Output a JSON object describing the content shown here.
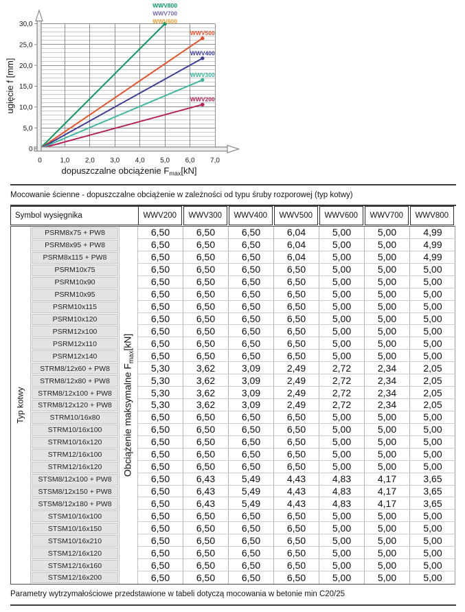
{
  "captions": {
    "table_intro": "Mocowanie ścienne - dopuszczalne obciążenie w zależności od typu śruby rozporowej (typ kotwy)",
    "footer_note": "Parametry wytrzymałościowe przedstawione w tabeli dotyczą mocowania w betonie min C20/25"
  },
  "chart_data": {
    "type": "line",
    "xlabel": {
      "prefix": "dopuszczalne obciążenie F",
      "sub": "max",
      "suffix": "[kN]"
    },
    "ylabel": "ugięcie f [mm]",
    "xlim": [
      0,
      7
    ],
    "ylim": [
      0,
      30
    ],
    "x_tick_step": 1,
    "y_minor_step": 1,
    "y_major_step": 5,
    "x_tick_labels": [
      "0",
      "1,0",
      "2,0",
      "3,0",
      "4,0",
      "5,0",
      "6,0",
      "7,0"
    ],
    "y_tick_labels": [
      "0",
      "5,0",
      "10,0",
      "15,0",
      "20,0",
      "25,0",
      "30,0"
    ],
    "grid": true,
    "legend_position": "stacked labels above line ends",
    "top_labels": [
      {
        "name": "WWV800",
        "color": "#089a60"
      },
      {
        "name": "WWV700",
        "color": "#7668b1"
      },
      {
        "name": "WWV600",
        "color": "#f59b2d"
      }
    ],
    "series": [
      {
        "name": "WWV800",
        "color": "#089a60",
        "points": [
          [
            0,
            0
          ],
          [
            5.0,
            30.0
          ]
        ],
        "end_label": false
      },
      {
        "name": "WWV500",
        "color": "#e8502a",
        "points": [
          [
            0,
            0
          ],
          [
            6.5,
            26.5
          ]
        ],
        "end_label": true
      },
      {
        "name": "WWV400",
        "color": "#3c3c96",
        "points": [
          [
            0,
            0
          ],
          [
            6.5,
            21.7
          ]
        ],
        "end_label": true
      },
      {
        "name": "WWV300",
        "color": "#3cb49e",
        "points": [
          [
            0,
            0
          ],
          [
            6.5,
            16.5
          ]
        ],
        "end_label": true
      },
      {
        "name": "WWV200",
        "color": "#b51f55",
        "points": [
          [
            0,
            0
          ],
          [
            6.5,
            10.6
          ]
        ],
        "end_label": true
      }
    ]
  },
  "table": {
    "header_left": "Symbol wysięgnika",
    "columns": [
      "WWV200",
      "WWV300",
      "WWV400",
      "WWV500",
      "WWV600",
      "WWV700",
      "WWV800"
    ],
    "row_group_label": "Typ kotwy",
    "values_label": {
      "prefix": "Obciążenie maksymalne F",
      "sub": "max",
      "suffix": "[kN]"
    },
    "rows": [
      {
        "name": "PSRM8x75 + PW8",
        "values": [
          "6,50",
          "6,50",
          "6,50",
          "6,04",
          "5,00",
          "5,00",
          "4,99"
        ]
      },
      {
        "name": "PSRM8x95 + PW8",
        "values": [
          "6,50",
          "6,50",
          "6,50",
          "6,04",
          "5,00",
          "5,00",
          "4,99"
        ]
      },
      {
        "name": "PSRM8x115 + PW8",
        "values": [
          "6,50",
          "6,50",
          "6,50",
          "6,04",
          "5,00",
          "5,00",
          "4,99"
        ]
      },
      {
        "name": "PSRM10x75",
        "values": [
          "6,50",
          "6,50",
          "6,50",
          "6,50",
          "5,00",
          "5,00",
          "5,00"
        ]
      },
      {
        "name": "PSRM10x90",
        "values": [
          "6,50",
          "6,50",
          "6,50",
          "6,50",
          "5,00",
          "5,00",
          "5,00"
        ]
      },
      {
        "name": "PSRM10x95",
        "values": [
          "6,50",
          "6,50",
          "6,50",
          "6,50",
          "5,00",
          "5,00",
          "5,00"
        ]
      },
      {
        "name": "PSRM10x115",
        "values": [
          "6,50",
          "6,50",
          "6,50",
          "6,50",
          "5,00",
          "5,00",
          "5,00"
        ]
      },
      {
        "name": "PSRM10x120",
        "values": [
          "6,50",
          "6,50",
          "6,50",
          "6,50",
          "5,00",
          "5,00",
          "5,00"
        ]
      },
      {
        "name": "PSRM12x100",
        "values": [
          "6,50",
          "6,50",
          "6,50",
          "6,50",
          "5,00",
          "5,00",
          "5,00"
        ]
      },
      {
        "name": "PSRM12x110",
        "values": [
          "6,50",
          "6,50",
          "6,50",
          "6,50",
          "5,00",
          "5,00",
          "5,00"
        ]
      },
      {
        "name": "PSRM12x140",
        "values": [
          "6,50",
          "6,50",
          "6,50",
          "6,50",
          "5,00",
          "5,00",
          "5,00"
        ]
      },
      {
        "name": "STRM8/12x60 + PW8",
        "values": [
          "5,30",
          "3,62",
          "3,09",
          "2,49",
          "2,72",
          "2,34",
          "2,05"
        ]
      },
      {
        "name": "STRM8/12x80 + PW8",
        "values": [
          "5,30",
          "3,62",
          "3,09",
          "2,49",
          "2,72",
          "2,34",
          "2,05"
        ]
      },
      {
        "name": "STRM8/12x100 + PW8",
        "values": [
          "5,30",
          "3,62",
          "3,09",
          "2,49",
          "2,72",
          "2,34",
          "2,05"
        ]
      },
      {
        "name": "STRM8/12x120 + PW8",
        "values": [
          "5,30",
          "3,62",
          "3,09",
          "2,49",
          "2,72",
          "2,34",
          "2,05"
        ]
      },
      {
        "name": "STRM10/16x80",
        "values": [
          "6,50",
          "6,50",
          "6,50",
          "6,50",
          "5,00",
          "5,00",
          "5,00"
        ]
      },
      {
        "name": "STRM10/16x100",
        "values": [
          "6,50",
          "6,50",
          "6,50",
          "6,50",
          "5,00",
          "5,00",
          "5,00"
        ]
      },
      {
        "name": "STRM10/16x120",
        "values": [
          "6,50",
          "6,50",
          "6,50",
          "6,50",
          "5,00",
          "5,00",
          "5,00"
        ]
      },
      {
        "name": "STRM12/16x100",
        "values": [
          "6,50",
          "6,50",
          "6,50",
          "6,50",
          "5,00",
          "5,00",
          "5,00"
        ]
      },
      {
        "name": "STRM12/16x120",
        "values": [
          "6,50",
          "6,50",
          "6,50",
          "6,50",
          "5,00",
          "5,00",
          "5,00"
        ]
      },
      {
        "name": "STSM8/12x100 + PW8",
        "values": [
          "6,50",
          "6,43",
          "5,49",
          "4,43",
          "4,83",
          "4,17",
          "3,65"
        ]
      },
      {
        "name": "STSM8/12x150 + PW8",
        "values": [
          "6,50",
          "6,43",
          "5,49",
          "4,43",
          "4,83",
          "4,17",
          "3,65"
        ]
      },
      {
        "name": "STSM8/12x180 + PW8",
        "values": [
          "6,50",
          "6,43",
          "5,49",
          "4,43",
          "4,83",
          "4,17",
          "3,65"
        ]
      },
      {
        "name": "STSM10/16x100",
        "values": [
          "6,50",
          "6,50",
          "6,50",
          "6,50",
          "5,00",
          "5,00",
          "5,00"
        ]
      },
      {
        "name": "STSM10/16x150",
        "values": [
          "6,50",
          "6,50",
          "6,50",
          "6,50",
          "5,00",
          "5,00",
          "5,00"
        ]
      },
      {
        "name": "STSM10/16x210",
        "values": [
          "6,50",
          "6,50",
          "6,50",
          "6,50",
          "5,00",
          "5,00",
          "5,00"
        ]
      },
      {
        "name": "STSM12/16x120",
        "values": [
          "6,50",
          "6,50",
          "6,50",
          "6,50",
          "5,00",
          "5,00",
          "5,00"
        ]
      },
      {
        "name": "STSM12/16x160",
        "values": [
          "6,50",
          "6,50",
          "6,50",
          "6,50",
          "5,00",
          "5,00",
          "5,00"
        ]
      },
      {
        "name": "STSM12/16x200",
        "values": [
          "6,50",
          "6,50",
          "6,50",
          "6,50",
          "5,00",
          "5,00",
          "5,00"
        ]
      }
    ]
  }
}
